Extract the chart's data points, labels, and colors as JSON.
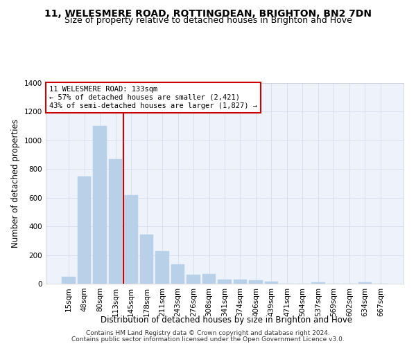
{
  "title": "11, WELESMERE ROAD, ROTTINGDEAN, BRIGHTON, BN2 7DN",
  "subtitle": "Size of property relative to detached houses in Brighton and Hove",
  "xlabel": "Distribution of detached houses by size in Brighton and Hove",
  "ylabel": "Number of detached properties",
  "footnote1": "Contains HM Land Registry data © Crown copyright and database right 2024.",
  "footnote2": "Contains public sector information licensed under the Open Government Licence v3.0.",
  "categories": [
    "15sqm",
    "48sqm",
    "80sqm",
    "113sqm",
    "145sqm",
    "178sqm",
    "211sqm",
    "243sqm",
    "276sqm",
    "308sqm",
    "341sqm",
    "374sqm",
    "406sqm",
    "439sqm",
    "471sqm",
    "504sqm",
    "537sqm",
    "569sqm",
    "602sqm",
    "634sqm",
    "667sqm"
  ],
  "values": [
    50,
    750,
    1100,
    870,
    620,
    345,
    225,
    135,
    63,
    70,
    30,
    30,
    22,
    14,
    0,
    0,
    12,
    0,
    0,
    12,
    0
  ],
  "bar_color": "#b8d0e8",
  "bar_edgecolor": "#b8d0e8",
  "annotation_text": "11 WELESMERE ROAD: 133sqm\n← 57% of detached houses are smaller (2,421)\n43% of semi-detached houses are larger (1,827) →",
  "annotation_box_color": "#ffffff",
  "annotation_box_edgecolor": "#cc0000",
  "vline_color": "#cc0000",
  "ylim": [
    0,
    1400
  ],
  "yticks": [
    0,
    200,
    400,
    600,
    800,
    1000,
    1200,
    1400
  ],
  "background_color": "#edf2fb",
  "title_fontsize": 10,
  "subtitle_fontsize": 9,
  "xlabel_fontsize": 8.5,
  "ylabel_fontsize": 8.5,
  "tick_fontsize": 7.5,
  "annotation_fontsize": 7.5,
  "footnote_fontsize": 6.5
}
